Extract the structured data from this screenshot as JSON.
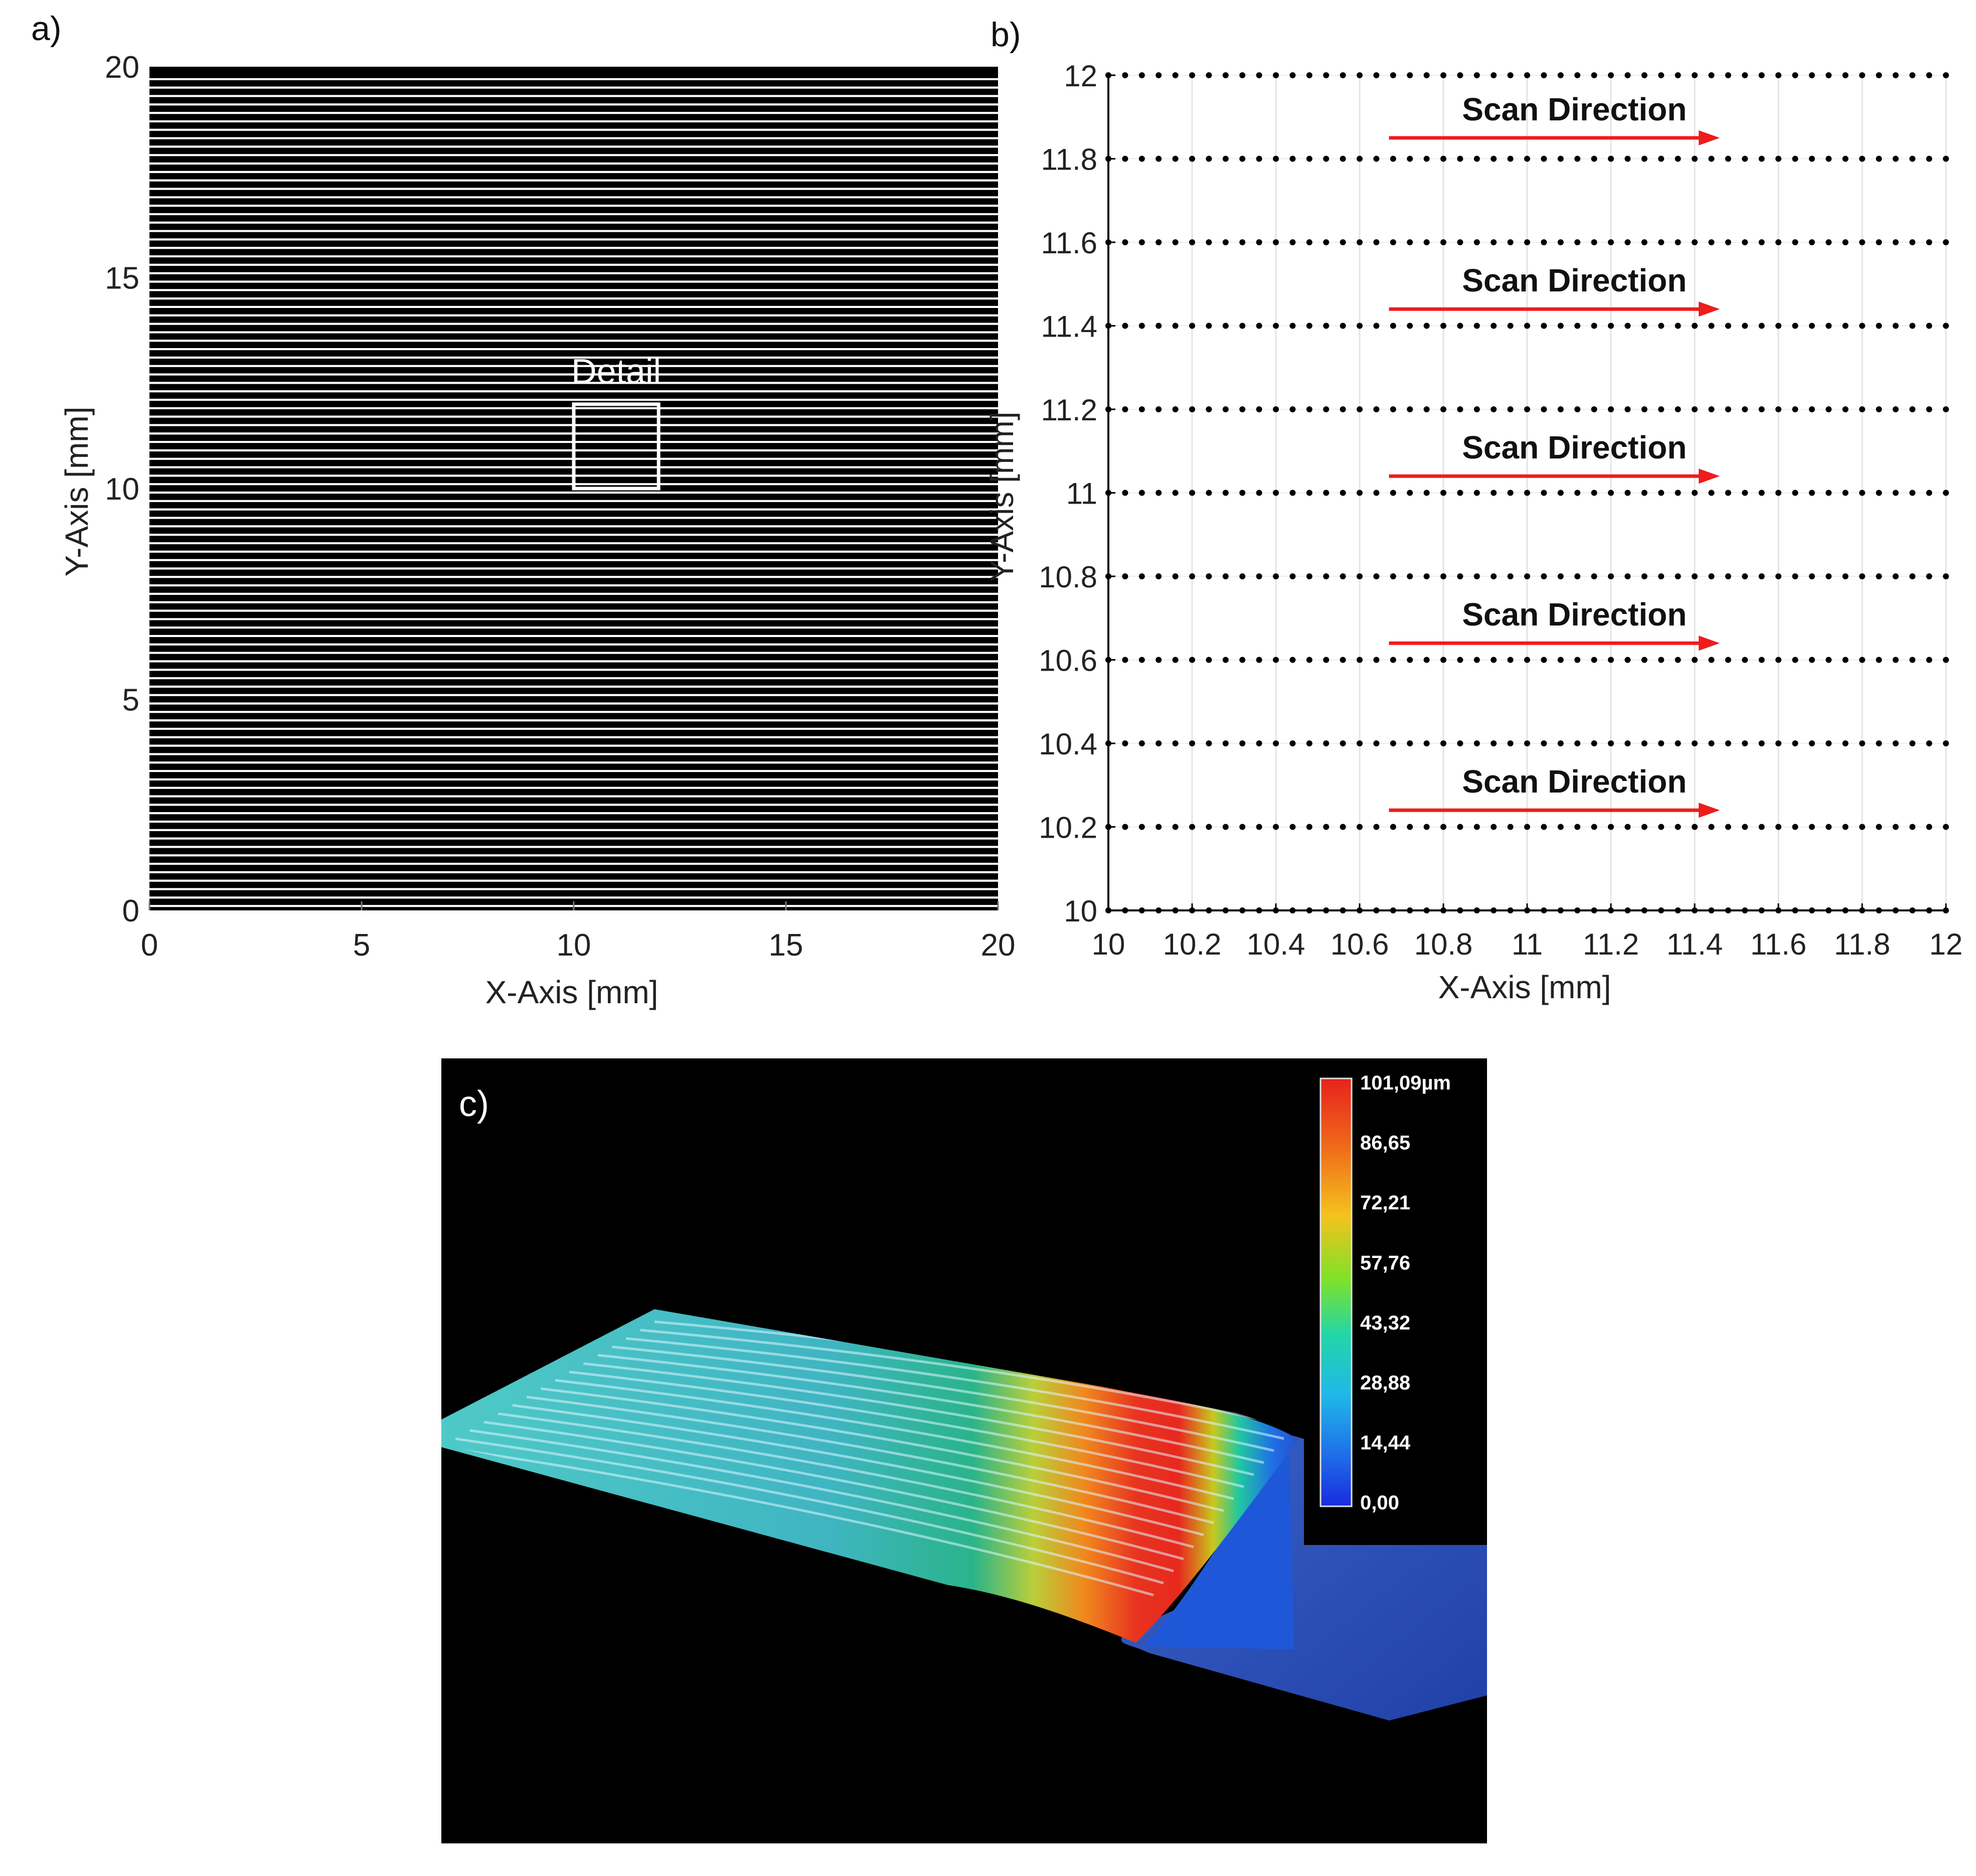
{
  "panel_labels": {
    "a": "a)",
    "b": "b)",
    "c": "c)"
  },
  "chart_data": [
    {
      "id": "a",
      "type": "line",
      "title": "",
      "description_kind": "raster hatch pattern (horizontal scan lines)",
      "xlabel": "X-Axis [mm]",
      "ylabel": "Y-Axis [mm]",
      "xlim": [
        0,
        20
      ],
      "ylim": [
        0,
        20
      ],
      "xticks": [
        "0",
        "5",
        "10",
        "15",
        "20"
      ],
      "yticks": [
        "0",
        "5",
        "10",
        "15",
        "20"
      ],
      "hatch_spacing_mm": 0.2,
      "detail_box": {
        "label": "Detail",
        "x0": 10,
        "x1": 12,
        "y0": 10,
        "y1": 12
      }
    },
    {
      "id": "b",
      "type": "scatter",
      "title": "",
      "xlabel": "X-Axis [mm]",
      "ylabel": "Y-Axis [mm]",
      "xlim": [
        10,
        12
      ],
      "ylim": [
        10,
        12
      ],
      "xticks": [
        "10",
        "10.2",
        "10.4",
        "10.6",
        "10.8",
        "11",
        "11.2",
        "11.4",
        "11.6",
        "11.8",
        "12"
      ],
      "yticks": [
        "10",
        "10.2",
        "10.4",
        "10.6",
        "10.8",
        "11",
        "11.2",
        "11.4",
        "11.6",
        "11.8",
        "12"
      ],
      "grid": true,
      "point_rows_y": [
        10,
        10.2,
        10.4,
        10.6,
        10.8,
        11,
        11.2,
        11.4,
        11.6,
        11.8,
        12
      ],
      "point_spacing_x": 0.04,
      "annotations": [
        {
          "text": "Scan Direction",
          "x_start": 10.67,
          "x_end": 11.46,
          "y": 11.85
        },
        {
          "text": "Scan Direction",
          "x_start": 10.67,
          "x_end": 11.46,
          "y": 11.44
        },
        {
          "text": "Scan Direction",
          "x_start": 10.67,
          "x_end": 11.46,
          "y": 11.04
        },
        {
          "text": "Scan Direction",
          "x_start": 10.67,
          "x_end": 11.46,
          "y": 10.64
        },
        {
          "text": "Scan Direction",
          "x_start": 10.67,
          "x_end": 11.46,
          "y": 10.24
        }
      ],
      "annotation_color": "#ee1c1c"
    },
    {
      "id": "c",
      "type": "heatmap",
      "title": "",
      "description_kind": "3D surface height map",
      "colorbar_labels": [
        "101,09µm",
        "86,65",
        "72,21",
        "57,76",
        "43,32",
        "28,88",
        "14,44",
        "0,00"
      ],
      "colorbar_values_um": [
        101.09,
        86.65,
        72.21,
        57.76,
        43.32,
        28.88,
        14.44,
        0.0
      ],
      "colors": [
        "#e8221c",
        "#f06a1a",
        "#f5c21c",
        "#7ee22a",
        "#22d6a8",
        "#20b8e8",
        "#1f6ee8",
        "#1a2ae0"
      ]
    }
  ]
}
